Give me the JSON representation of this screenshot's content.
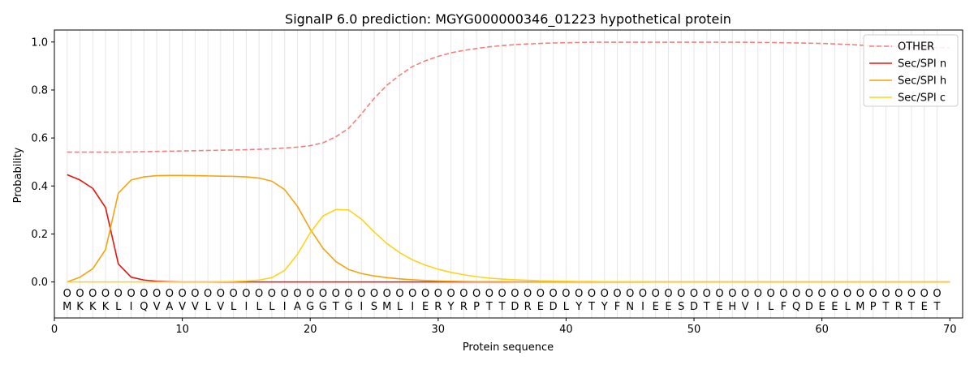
{
  "chart_data": {
    "type": "line",
    "title": "SignalP 6.0 prediction: MGYG000000346_01223 hypothetical protein",
    "xlabel": "Protein sequence",
    "ylabel": "Probability",
    "xlim": [
      0,
      71
    ],
    "ylim": [
      -0.15,
      1.05
    ],
    "x_ticks": [
      0,
      10,
      20,
      30,
      40,
      50,
      60,
      70
    ],
    "y_ticks": [
      0.0,
      0.2,
      0.4,
      0.6,
      0.8,
      1.0
    ],
    "x_tick_labels": [
      "0",
      "10",
      "20",
      "30",
      "40",
      "50",
      "60",
      "70"
    ],
    "y_tick_labels": [
      "0.0",
      "0.2",
      "0.4",
      "0.6",
      "0.8",
      "1.0"
    ],
    "grid": "vertical lines at each residue",
    "legend_position": "top-right",
    "sequence": [
      "M",
      "K",
      "K",
      "K",
      "L",
      "I",
      "Q",
      "V",
      "A",
      "V",
      "V",
      "L",
      "V",
      "L",
      "I",
      "L",
      "L",
      "I",
      "A",
      "G",
      "G",
      "T",
      "G",
      "I",
      "S",
      "M",
      "L",
      "I",
      "E",
      "R",
      "Y",
      "R",
      "P",
      "T",
      "T",
      "D",
      "R",
      "E",
      "D",
      "L",
      "Y",
      "T",
      "Y",
      "F",
      "N",
      "I",
      "E",
      "E",
      "S",
      "D",
      "T",
      "E",
      "H",
      "V",
      "I",
      "L",
      "F",
      "Q",
      "D",
      "E",
      "E",
      "L",
      "M",
      "P",
      "T",
      "R",
      "T",
      "E",
      "T"
    ],
    "region_labels": [
      "O",
      "O",
      "O",
      "O",
      "O",
      "O",
      "O",
      "O",
      "O",
      "O",
      "O",
      "O",
      "O",
      "O",
      "O",
      "O",
      "O",
      "O",
      "O",
      "O",
      "O",
      "O",
      "O",
      "O",
      "O",
      "O",
      "O",
      "O",
      "O",
      "O",
      "O",
      "O",
      "O",
      "O",
      "O",
      "O",
      "O",
      "O",
      "O",
      "O",
      "O",
      "O",
      "O",
      "O",
      "O",
      "O",
      "O",
      "O",
      "O",
      "O",
      "O",
      "O",
      "O",
      "O",
      "O",
      "O",
      "O",
      "O",
      "O",
      "O",
      "O",
      "O",
      "O",
      "O",
      "O",
      "O",
      "O",
      "O",
      "O",
      "O"
    ],
    "series": [
      {
        "name": "OTHER",
        "color": "#f08080",
        "dash": "dashed",
        "values": [
          0.541,
          0.541,
          0.541,
          0.541,
          0.541,
          0.542,
          0.543,
          0.544,
          0.545,
          0.546,
          0.547,
          0.548,
          0.549,
          0.55,
          0.551,
          0.553,
          0.555,
          0.558,
          0.562,
          0.568,
          0.58,
          0.605,
          0.64,
          0.7,
          0.765,
          0.82,
          0.862,
          0.898,
          0.922,
          0.94,
          0.955,
          0.965,
          0.973,
          0.98,
          0.985,
          0.989,
          0.992,
          0.994,
          0.996,
          0.997,
          0.998,
          0.999,
          0.999,
          0.999,
          0.999,
          0.999,
          0.999,
          0.999,
          0.999,
          0.999,
          0.999,
          0.999,
          0.999,
          0.999,
          0.998,
          0.998,
          0.997,
          0.996,
          0.995,
          0.994,
          0.992,
          0.99,
          0.987,
          0.984,
          0.982,
          0.98,
          0.978,
          0.977,
          0.977,
          0.976
        ]
      },
      {
        "name": "Sec/SPI n",
        "color": "#e8150f",
        "dash": "solid",
        "values": [
          0.447,
          0.425,
          0.39,
          0.31,
          0.075,
          0.02,
          0.008,
          0.003,
          0.001,
          0,
          0,
          0,
          0,
          0,
          0,
          0,
          0,
          0,
          0,
          0,
          0,
          0,
          0,
          0,
          0,
          0,
          0,
          0,
          0,
          0,
          0,
          0,
          0,
          0,
          0,
          0,
          0,
          0,
          0,
          0,
          0,
          0,
          0,
          0,
          0,
          0,
          0,
          0,
          0,
          0,
          0,
          0,
          0,
          0,
          0,
          0,
          0,
          0,
          0,
          0,
          0,
          0,
          0,
          0,
          0,
          0,
          0,
          0,
          0,
          0
        ]
      },
      {
        "name": "Sec/SPI h",
        "color": "#f4a40f",
        "dash": "solid",
        "values": [
          0.0,
          0.02,
          0.055,
          0.135,
          0.37,
          0.425,
          0.438,
          0.443,
          0.444,
          0.444,
          0.443,
          0.442,
          0.441,
          0.44,
          0.438,
          0.433,
          0.42,
          0.385,
          0.315,
          0.22,
          0.14,
          0.085,
          0.052,
          0.035,
          0.025,
          0.018,
          0.013,
          0.009,
          0.006,
          0.004,
          0.003,
          0.002,
          0.001,
          0.001,
          0.001,
          0,
          0,
          0,
          0,
          0,
          0,
          0,
          0,
          0,
          0,
          0,
          0,
          0,
          0,
          0,
          0,
          0,
          0,
          0,
          0,
          0,
          0,
          0,
          0,
          0,
          0,
          0,
          0,
          0,
          0,
          0,
          0,
          0,
          0,
          0
        ]
      },
      {
        "name": "Sec/SPI c",
        "color": "#fcd41c",
        "dash": "solid",
        "values": [
          0.0,
          0.0,
          0.0,
          0.0,
          0.0,
          0.0,
          0.0,
          0.0,
          0.0,
          0.0,
          0.0,
          0.0,
          0.001,
          0.002,
          0.004,
          0.008,
          0.018,
          0.048,
          0.115,
          0.205,
          0.275,
          0.302,
          0.3,
          0.262,
          0.208,
          0.16,
          0.122,
          0.092,
          0.07,
          0.053,
          0.04,
          0.03,
          0.022,
          0.016,
          0.012,
          0.009,
          0.007,
          0.005,
          0.004,
          0.003,
          0.002,
          0.002,
          0.001,
          0.001,
          0.001,
          0.001,
          0,
          0,
          0,
          0,
          0,
          0,
          0,
          0,
          0,
          0,
          0,
          0,
          0,
          0,
          0,
          0,
          0,
          0,
          0,
          0,
          0,
          0,
          0,
          0
        ]
      }
    ]
  }
}
